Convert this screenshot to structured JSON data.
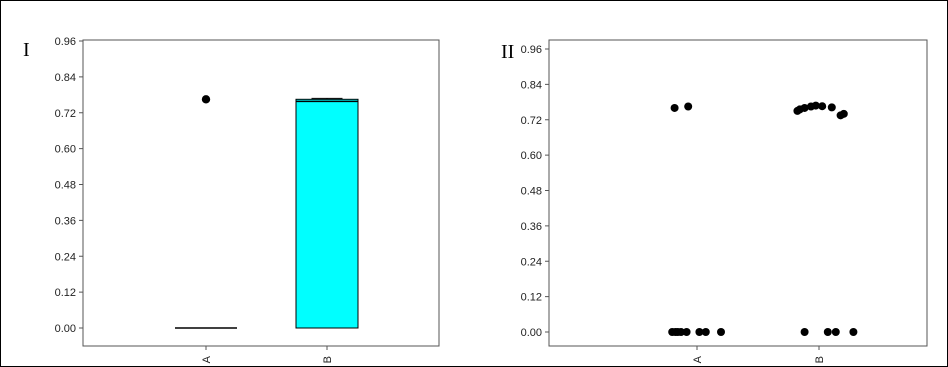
{
  "chart_data": [
    {
      "type": "box",
      "panel_label": "I",
      "categories": [
        "A",
        "B"
      ],
      "y_ticks": [
        "0.00",
        "0.12",
        "0.24",
        "0.36",
        "0.48",
        "0.60",
        "0.72",
        "0.84",
        "0.96"
      ],
      "ylim": [
        0,
        0.96
      ],
      "boxes": [
        {
          "category": "A",
          "q1": 0.0,
          "median": 0.0,
          "q3": 0.0,
          "whisker_low": 0.0,
          "whisker_high": 0.0,
          "outliers": [
            0.765
          ]
        },
        {
          "category": "B",
          "q1": 0.0,
          "median": 0.758,
          "q3": 0.765,
          "whisker_low": 0.0,
          "whisker_high": 0.768,
          "outliers": []
        }
      ],
      "box_fill": "#00ffff",
      "point_color": "#000000",
      "grid": false
    },
    {
      "type": "scatter",
      "panel_label": "II",
      "categories": [
        "A",
        "B"
      ],
      "y_ticks": [
        "0.00",
        "0.12",
        "0.24",
        "0.36",
        "0.48",
        "0.60",
        "0.72",
        "0.84",
        "0.96"
      ],
      "ylim": [
        0,
        0.96
      ],
      "series": [
        {
          "category": "A",
          "points": [
            {
              "x": -0.28,
              "y": 0.76
            },
            {
              "x": -0.11,
              "y": 0.765
            },
            {
              "x": -0.31,
              "y": 0.0
            },
            {
              "x": -0.27,
              "y": 0.0
            },
            {
              "x": -0.24,
              "y": 0.0
            },
            {
              "x": -0.2,
              "y": 0.0
            },
            {
              "x": -0.13,
              "y": 0.0
            },
            {
              "x": 0.03,
              "y": 0.0
            },
            {
              "x": 0.11,
              "y": 0.0
            },
            {
              "x": 0.3,
              "y": 0.0
            }
          ]
        },
        {
          "category": "B",
          "points": [
            {
              "x": -0.27,
              "y": 0.75
            },
            {
              "x": -0.24,
              "y": 0.755
            },
            {
              "x": -0.18,
              "y": 0.76
            },
            {
              "x": -0.1,
              "y": 0.765
            },
            {
              "x": -0.04,
              "y": 0.768
            },
            {
              "x": 0.04,
              "y": 0.766
            },
            {
              "x": 0.16,
              "y": 0.762
            },
            {
              "x": 0.27,
              "y": 0.735
            },
            {
              "x": 0.31,
              "y": 0.74
            },
            {
              "x": -0.18,
              "y": 0.0
            },
            {
              "x": 0.11,
              "y": 0.0
            },
            {
              "x": 0.21,
              "y": 0.0
            },
            {
              "x": 0.43,
              "y": 0.0
            }
          ]
        }
      ],
      "point_color": "#000000",
      "grid": false
    }
  ]
}
